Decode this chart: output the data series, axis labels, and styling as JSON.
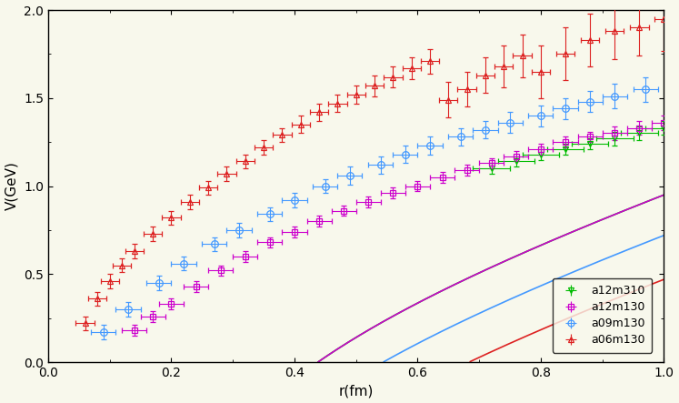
{
  "title": "",
  "xlabel": "r(fm)",
  "ylabel": "V(GeV)",
  "xlim": [
    0,
    1.0
  ],
  "ylim": [
    0,
    2.0
  ],
  "xticks": [
    0,
    0.2,
    0.4,
    0.6,
    0.8,
    1.0
  ],
  "yticks": [
    0,
    0.5,
    1.0,
    1.5,
    2.0
  ],
  "datasets": {
    "a12m310": {
      "color": "#00bb00",
      "marker": "v",
      "r_data": [
        0.72,
        0.76,
        0.8,
        0.84,
        0.88,
        0.92,
        0.96,
        1.0
      ],
      "V_data": [
        1.1,
        1.14,
        1.18,
        1.21,
        1.24,
        1.27,
        1.3,
        1.33
      ],
      "V_err": [
        0.03,
        0.03,
        0.03,
        0.03,
        0.03,
        0.04,
        0.04,
        0.04
      ],
      "xerr": 0.03
    },
    "a12m130": {
      "color": "#cc00cc",
      "marker": "s",
      "r_data": [
        0.14,
        0.17,
        0.2,
        0.24,
        0.28,
        0.32,
        0.36,
        0.4,
        0.44,
        0.48,
        0.52,
        0.56,
        0.6,
        0.64,
        0.68,
        0.72,
        0.76,
        0.8,
        0.84,
        0.88,
        0.92,
        0.96,
        1.0
      ],
      "V_data": [
        0.18,
        0.26,
        0.33,
        0.43,
        0.52,
        0.6,
        0.68,
        0.74,
        0.8,
        0.86,
        0.91,
        0.96,
        1.0,
        1.05,
        1.09,
        1.13,
        1.17,
        1.21,
        1.25,
        1.28,
        1.3,
        1.33,
        1.36
      ],
      "V_err": [
        0.03,
        0.03,
        0.03,
        0.03,
        0.03,
        0.03,
        0.03,
        0.03,
        0.03,
        0.03,
        0.03,
        0.03,
        0.03,
        0.03,
        0.03,
        0.03,
        0.03,
        0.03,
        0.03,
        0.03,
        0.04,
        0.04,
        0.04
      ],
      "xerr": 0.02
    },
    "a09m130": {
      "color": "#4499ff",
      "marker": "o",
      "r_data": [
        0.09,
        0.13,
        0.18,
        0.22,
        0.27,
        0.31,
        0.36,
        0.4,
        0.45,
        0.49,
        0.54,
        0.58,
        0.62,
        0.67,
        0.71,
        0.75,
        0.8,
        0.84,
        0.88,
        0.92,
        0.97
      ],
      "V_data": [
        0.17,
        0.3,
        0.45,
        0.56,
        0.67,
        0.75,
        0.84,
        0.92,
        1.0,
        1.06,
        1.12,
        1.18,
        1.23,
        1.28,
        1.32,
        1.36,
        1.4,
        1.44,
        1.48,
        1.51,
        1.55
      ],
      "V_err": [
        0.04,
        0.04,
        0.04,
        0.04,
        0.04,
        0.04,
        0.04,
        0.04,
        0.04,
        0.05,
        0.05,
        0.05,
        0.05,
        0.05,
        0.05,
        0.06,
        0.06,
        0.06,
        0.06,
        0.07,
        0.07
      ],
      "xerr": 0.02
    },
    "a06m130": {
      "color": "#dd2222",
      "marker": "^",
      "r_data": [
        0.06,
        0.08,
        0.1,
        0.12,
        0.14,
        0.17,
        0.2,
        0.23,
        0.26,
        0.29,
        0.32,
        0.35,
        0.38,
        0.41,
        0.44,
        0.47,
        0.5,
        0.53,
        0.56,
        0.59,
        0.62,
        0.65,
        0.68,
        0.71,
        0.74,
        0.77,
        0.8,
        0.84,
        0.88,
        0.92,
        0.96,
        1.0
      ],
      "V_data": [
        0.22,
        0.36,
        0.46,
        0.55,
        0.63,
        0.73,
        0.82,
        0.91,
        0.99,
        1.07,
        1.14,
        1.22,
        1.29,
        1.35,
        1.42,
        1.47,
        1.52,
        1.57,
        1.62,
        1.67,
        1.71,
        1.49,
        1.55,
        1.63,
        1.68,
        1.74,
        1.65,
        1.75,
        1.83,
        1.88,
        1.9,
        1.95
      ],
      "V_err": [
        0.04,
        0.04,
        0.04,
        0.04,
        0.04,
        0.04,
        0.04,
        0.04,
        0.04,
        0.04,
        0.04,
        0.04,
        0.04,
        0.05,
        0.05,
        0.05,
        0.05,
        0.06,
        0.06,
        0.06,
        0.07,
        0.1,
        0.1,
        0.1,
        0.12,
        0.12,
        0.15,
        0.15,
        0.15,
        0.16,
        0.16,
        0.18
      ],
      "xerr": 0.015
    }
  },
  "fit_params": {
    "a12m310": {
      "alpha": 0.25,
      "sigma": 1.12,
      "C": 0.08,
      "r_min": 0.05,
      "r_max": 1.02
    },
    "a12m130": {
      "alpha": 0.25,
      "sigma": 1.12,
      "C": 0.08,
      "r_min": 0.05,
      "r_max": 1.02
    },
    "a09m130": {
      "alpha": 0.25,
      "sigma": 1.12,
      "C": -0.15,
      "r_min": 0.045,
      "r_max": 1.02
    },
    "a06m130": {
      "alpha": 0.25,
      "sigma": 1.12,
      "C": -0.4,
      "r_min": 0.038,
      "r_max": 1.02
    }
  },
  "fit_colors": {
    "a12m310": "#00bb00",
    "a12m130": "#cc00cc",
    "a09m130": "#4499ff",
    "a06m130": "#dd2222"
  },
  "legend_order": [
    "a12m310",
    "a12m130",
    "a09m130",
    "a06m130"
  ],
  "background_color": "#f8f8ec",
  "figsize": [
    7.47,
    4.43
  ],
  "dpi": 100
}
